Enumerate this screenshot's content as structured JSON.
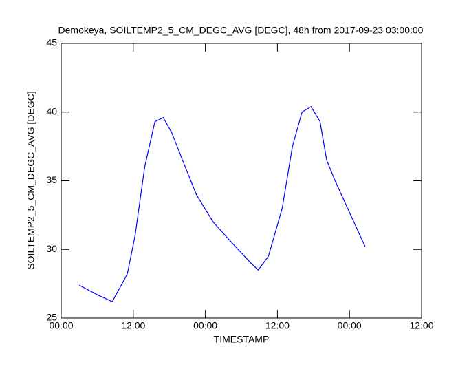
{
  "chart_data": {
    "type": "line",
    "title": "Demokeya, SOILTEMP2_5_CM_DEGC_AVG [DEGC], 48h from  2017-09-23 03:00:00",
    "x_label": "TIMESTAMP",
    "y_label": "SOILTEMP2_5_CM_DEGC_AVG [DEGC]",
    "x": [
      3,
      6,
      8.5,
      11,
      12.3,
      13.9,
      15.6,
      17,
      18.4,
      20.2,
      22.5,
      25.3,
      28.8,
      31.6,
      32.8,
      34.5,
      36.8,
      38.5,
      40.1,
      41.6,
      43.1,
      44.2,
      45.6,
      48.2,
      50.6
    ],
    "series": [
      {
        "name": "SOILTEMP2_5_CM_DEGC_AVG",
        "color": "#0000ff",
        "values": [
          27.4,
          26.7,
          26.2,
          28.2,
          31,
          36,
          39.3,
          39.6,
          38.5,
          36.5,
          34,
          32,
          30.3,
          29,
          28.5,
          29.5,
          33,
          37.5,
          40,
          40.4,
          39.3,
          36.5,
          35,
          32.5,
          30.2
        ]
      }
    ],
    "xlim": [
      0,
      60
    ],
    "xticks": [
      {
        "value": 0,
        "label": "00:00"
      },
      {
        "value": 12,
        "label": "12:00"
      },
      {
        "value": 24,
        "label": "00:00"
      },
      {
        "value": 36,
        "label": "12:00"
      },
      {
        "value": 48,
        "label": "00:00"
      },
      {
        "value": 60,
        "label": "12:00"
      }
    ],
    "ylim": [
      25,
      45
    ],
    "yticks": [
      25,
      30,
      35,
      40,
      45
    ],
    "grid": false
  }
}
